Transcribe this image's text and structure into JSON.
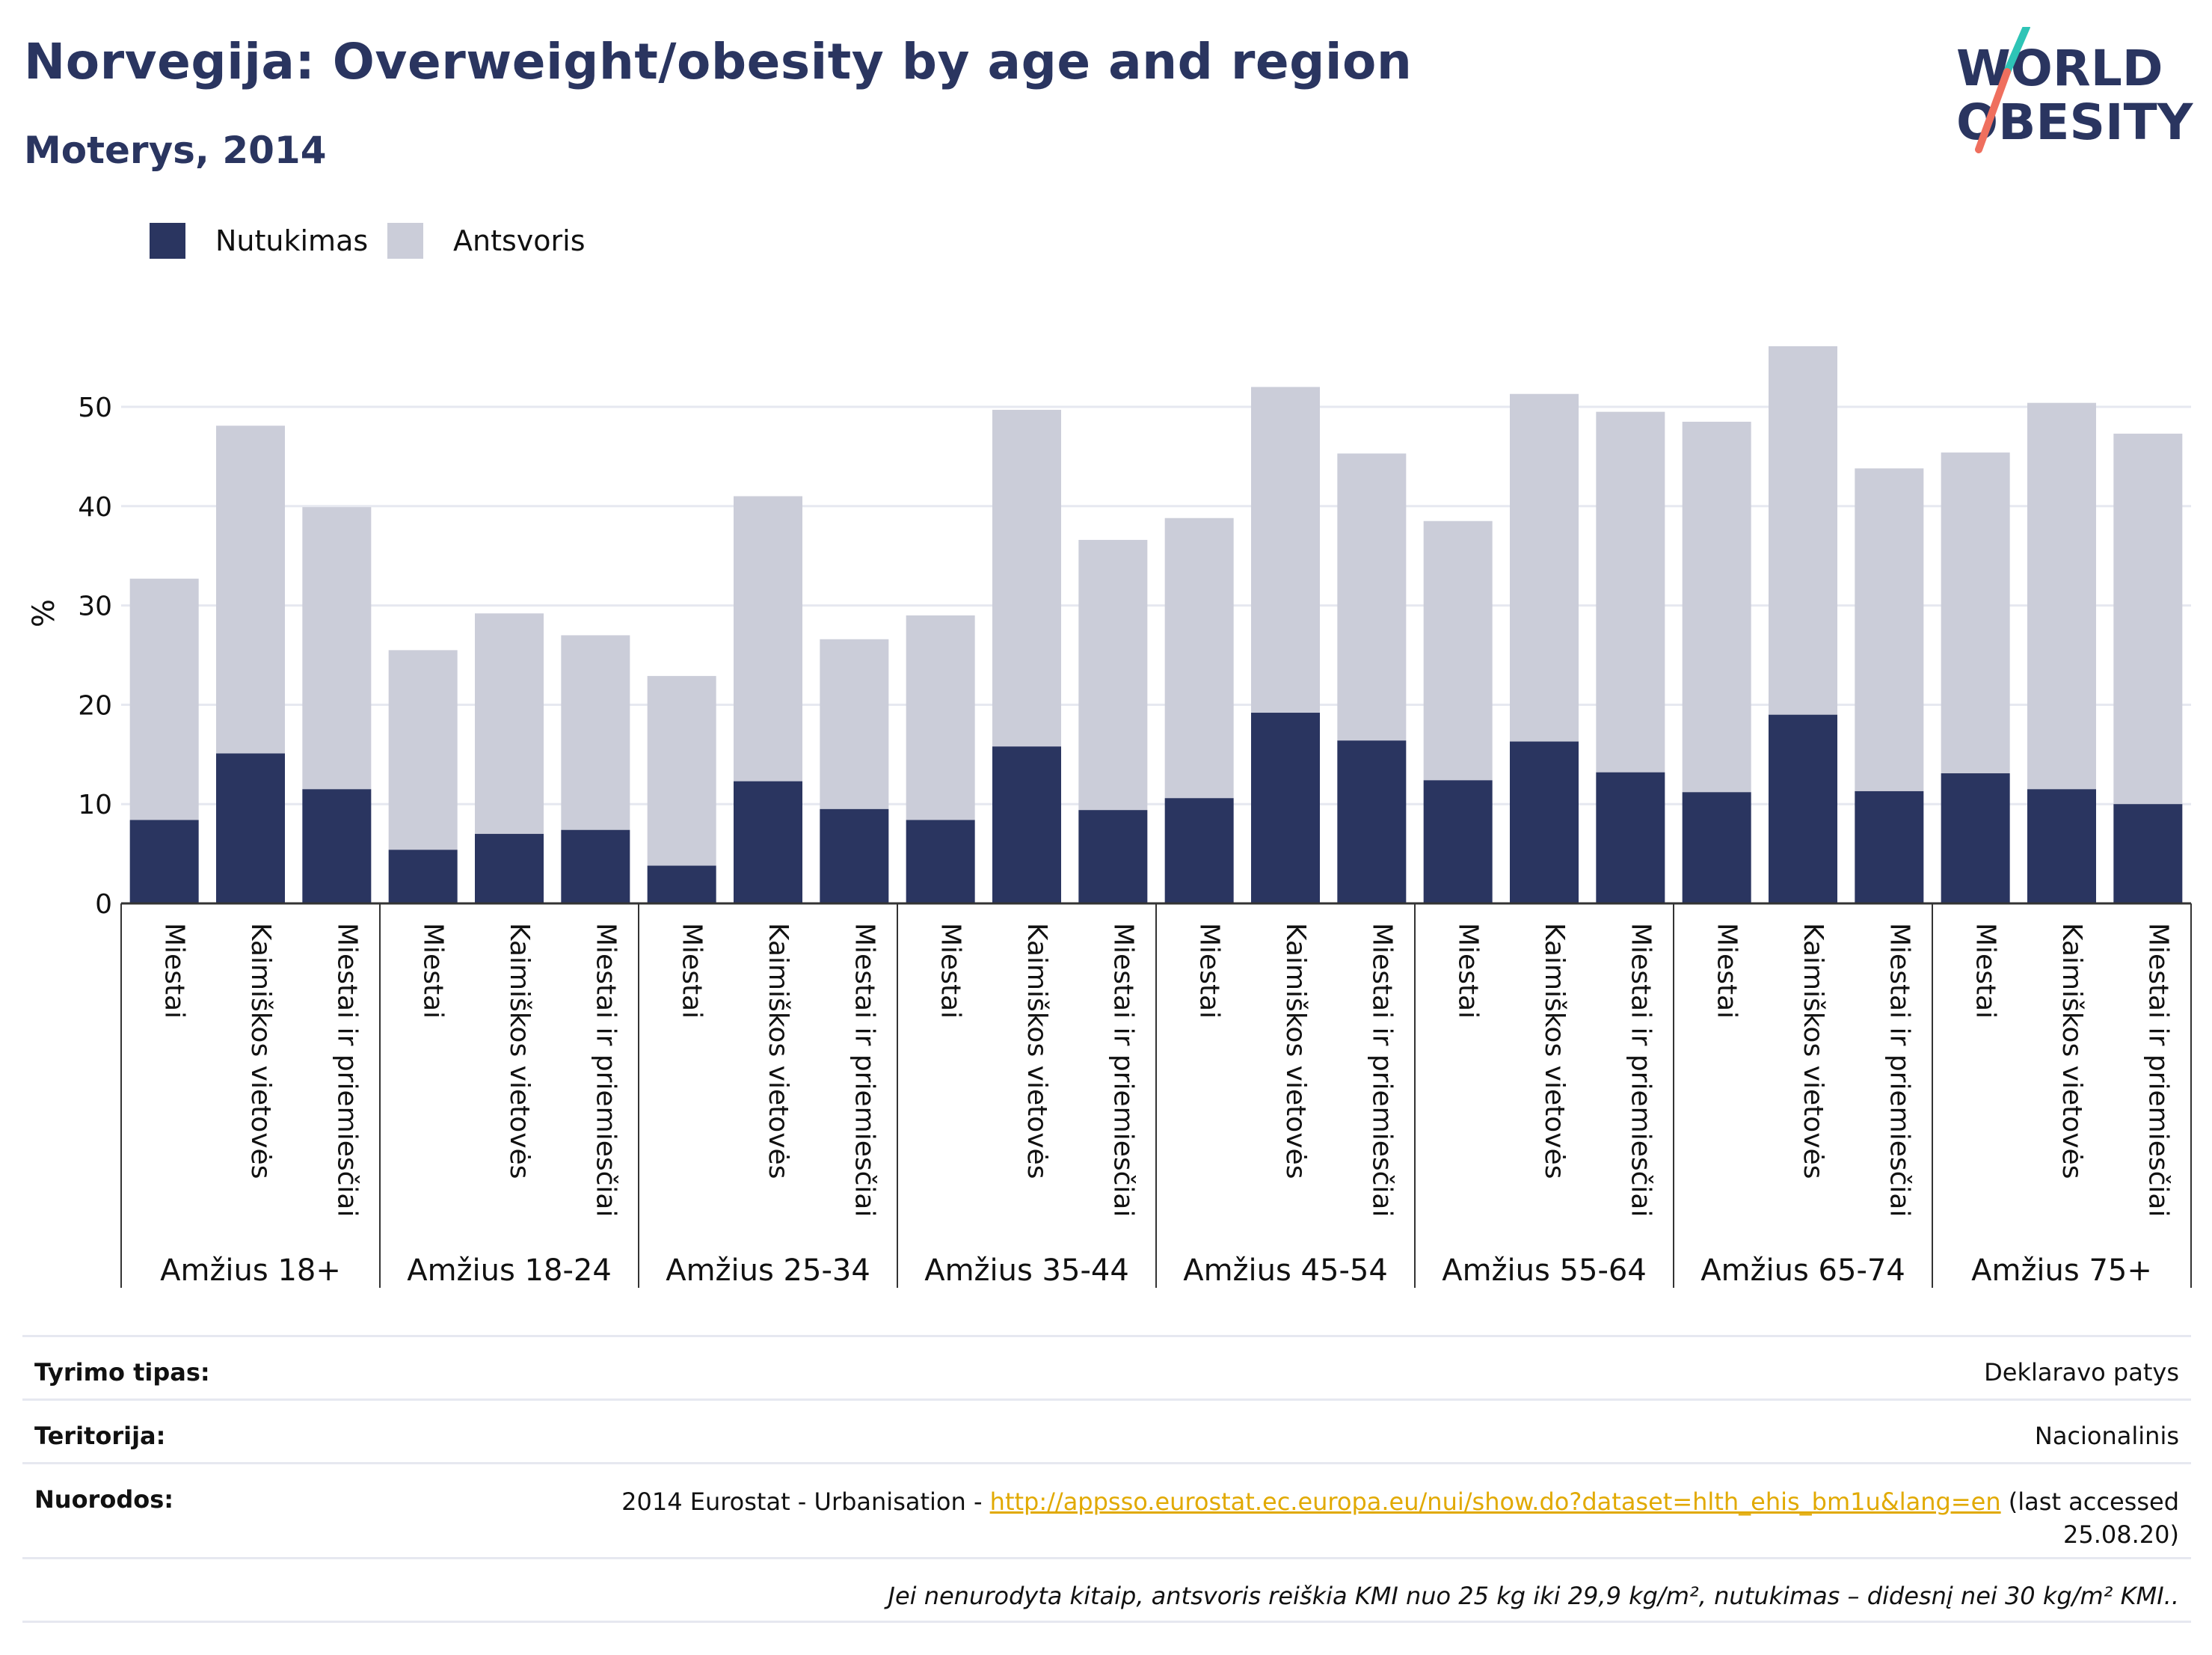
{
  "title": "Norvegija: Overweight/obesity by age and region",
  "subtitle": "Moterys, 2014",
  "logo": {
    "line1": "WORLD",
    "line2": "OBESITY",
    "accent_colors": [
      "#2ec4b6",
      "#ef6f5e"
    ]
  },
  "legend": [
    {
      "label": "Nutukimas",
      "color": "#2a3560"
    },
    {
      "label": "Antsvoris",
      "color": "#cbcdd9"
    }
  ],
  "chart_data": {
    "type": "bar",
    "stacked": true,
    "ylabel": "%",
    "ylim": [
      0,
      60
    ],
    "yticks": [
      0,
      10,
      20,
      30,
      40,
      50
    ],
    "grid": true,
    "legend_position": "top-left",
    "groups": [
      "Amžius 18+",
      "Amžius 18-24",
      "Amžius 25-34",
      "Amžius 35-44",
      "Amžius 45-54",
      "Amžius 55-64",
      "Amžius 65-74",
      "Amžius 75+"
    ],
    "subcategories": [
      "Miestai",
      "Kaimiškos vietovės",
      "Miestai ir priemiesčiai"
    ],
    "series": [
      {
        "name": "Nutukimas",
        "color": "#2a3560",
        "values": [
          [
            8.4,
            15.1,
            11.5
          ],
          [
            5.4,
            7.0,
            7.4
          ],
          [
            3.8,
            12.3,
            9.5
          ],
          [
            8.4,
            15.8,
            9.4
          ],
          [
            10.6,
            19.2,
            16.4
          ],
          [
            12.4,
            16.3,
            13.2
          ],
          [
            11.2,
            19.0,
            11.3
          ],
          [
            13.1,
            11.5,
            10.0
          ]
        ]
      },
      {
        "name": "Antsvoris",
        "color": "#cbcdd9",
        "values": [
          [
            24.3,
            33.0,
            28.4
          ],
          [
            20.1,
            22.2,
            19.6
          ],
          [
            19.1,
            28.7,
            17.1
          ],
          [
            20.6,
            33.9,
            27.2
          ],
          [
            28.2,
            32.8,
            28.9
          ],
          [
            26.1,
            35.0,
            36.3
          ],
          [
            37.3,
            37.1,
            32.5
          ],
          [
            32.3,
            38.9,
            37.3
          ]
        ]
      }
    ]
  },
  "meta": {
    "rows": [
      {
        "label": "Tyrimo tipas:",
        "value": "Deklaravo patys"
      },
      {
        "label": "Teritorija:",
        "value": "Nacionalinis"
      }
    ],
    "sources": {
      "label": "Nuorodos:",
      "prefix": "2014 Eurostat - Urbanisation - ",
      "link": "http://appsso.eurostat.ec.europa.eu/nui/show.do?dataset=hlth_ehis_bm1u&lang=en",
      "suffix_line1": " (last accessed",
      "suffix_line2": "25.08.20)"
    },
    "note": "Jei nenurodyta kitaip, antsvoris reiškia KMI nuo 25 kg iki 29,9 kg/m², nutukimas – didesnį nei 30 kg/m² KMI.."
  }
}
